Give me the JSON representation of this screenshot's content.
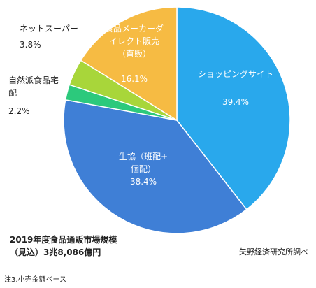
{
  "chart_data": {
    "type": "pie",
    "title": "2019年度食品通販市場規模",
    "subtitle": "（見込）3兆8,086億円",
    "slices": [
      {
        "label_lines": [
          "ショッピングサイト"
        ],
        "value": 39.4,
        "value_text": "39.4%",
        "color": "#29a8ec"
      },
      {
        "label_lines": [
          "生協（班配+",
          "個配）"
        ],
        "value": 38.4,
        "value_text": "38.4%",
        "color": "#3f7fd6"
      },
      {
        "label_lines": [
          "自然派食品宅",
          "配"
        ],
        "value": 2.2,
        "value_text": "2.2%",
        "color": "#2cc97c"
      },
      {
        "label_lines": [
          "ネットスーパー"
        ],
        "value": 3.8,
        "value_text": "3.8%",
        "color": "#a8d63a"
      },
      {
        "label_lines": [
          "食品メーカーダ",
          "イレクト販売",
          "（直販）"
        ],
        "value": 16.1,
        "value_text": "16.1%",
        "color": "#f6bb43"
      }
    ]
  },
  "source": "矢野経済研究所調べ",
  "note": "注3.小売金額ベース"
}
